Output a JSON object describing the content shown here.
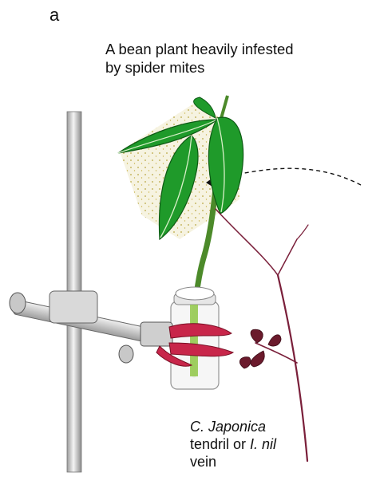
{
  "figure": {
    "panel_label": "a",
    "title_line1": "A bean plant heavily infested",
    "title_line2": "by spider mites",
    "tendril_label": {
      "line1_species": "C. Japonica",
      "line2_text": "tendril or ",
      "line2_species": "I. nil",
      "line3_text": "vein"
    }
  },
  "colors": {
    "leaf": "#1f9a2a",
    "leaf_dark": "#0d5a14",
    "stem": "#4c8a2a",
    "tendril": "#7a1f3a",
    "clamp_metal": "#c8c8c8",
    "clamp_grip": "#c8264a"
  }
}
